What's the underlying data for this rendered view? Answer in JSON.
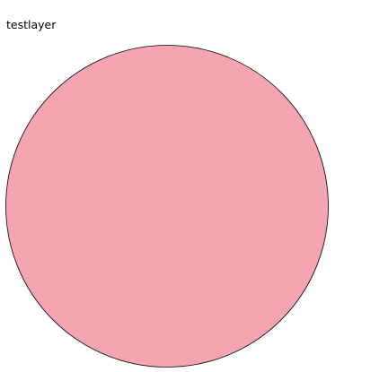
{
  "chart_data": {
    "type": "pie",
    "title": "testlayer",
    "slices": [
      {
        "label": "testlayer",
        "value": 100,
        "color": "#f4a5b1"
      }
    ],
    "legend": "none",
    "slice_stroke": "#000000"
  }
}
